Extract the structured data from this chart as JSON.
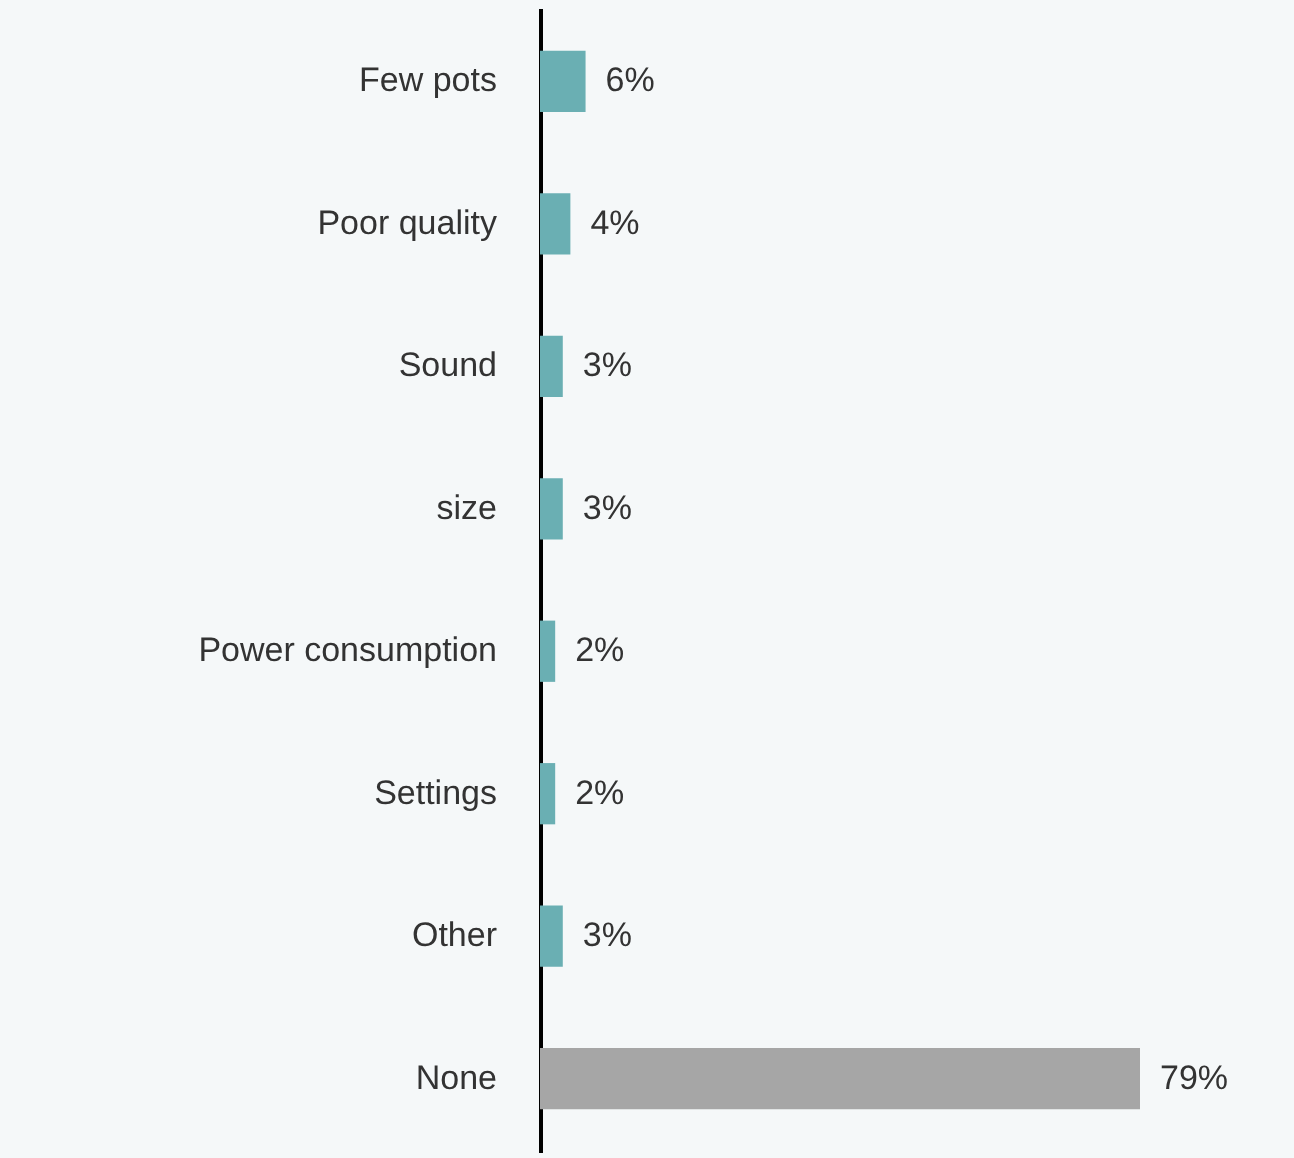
{
  "chart_data": {
    "type": "bar",
    "orientation": "horizontal",
    "categories": [
      "Few pots",
      "Poor quality",
      "Sound",
      "size",
      "Power consumption",
      "Settings",
      "Other",
      "None"
    ],
    "values": [
      6,
      4,
      3,
      3,
      2,
      2,
      3,
      79
    ],
    "colors": [
      "#6aafb3",
      "#6aafb3",
      "#6aafb3",
      "#6aafb3",
      "#6aafb3",
      "#6aafb3",
      "#6aafb3",
      "#a6a6a6"
    ],
    "value_labels": [
      "6%",
      "4%",
      "3%",
      "3%",
      "2%",
      "2%",
      "3%",
      "79%"
    ]
  }
}
